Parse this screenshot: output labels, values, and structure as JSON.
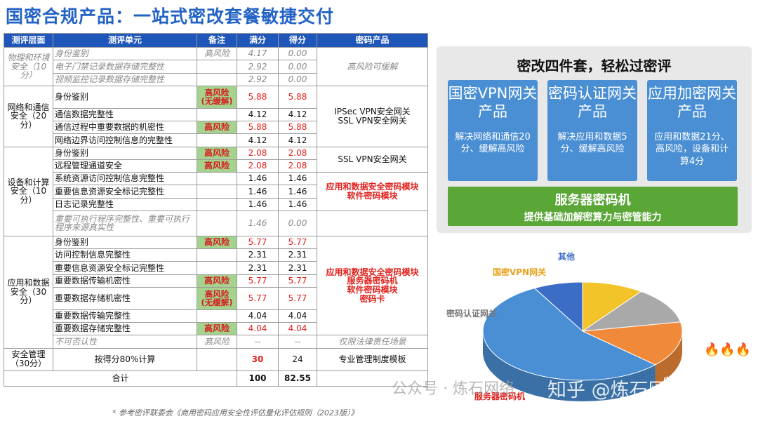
{
  "title": "国密合规产品：一站式密改套餐敏捷交付",
  "table": {
    "headers": [
      "测评层面",
      "测评单元",
      "备注",
      "满分",
      "得分",
      "密码产品"
    ],
    "r_phys_layer": "物理和环境安全（10分）",
    "r_phys": [
      {
        "unit": "身份鉴别",
        "note": "高风险",
        "full": "4.17",
        "score": "0.00"
      },
      {
        "unit": "电子门禁记录数据存储完整性",
        "note": "",
        "full": "2.92",
        "score": "0.00"
      },
      {
        "unit": "视频监控记录数据存储完整性",
        "note": "",
        "full": "2.92",
        "score": "0.00"
      }
    ],
    "r_phys_product": "高风险可缓解",
    "r_net_layer": "网络和通信安全（20分）",
    "r_net": [
      {
        "unit": "身份鉴别",
        "note": "高风险",
        "note2": "(无缓解)",
        "full": "5.88",
        "score": "5.88"
      },
      {
        "unit": "通信数据完整性",
        "note": "",
        "full": "4.12",
        "score": "4.12"
      },
      {
        "unit": "通信过程中重要数据的机密性",
        "note": "高风险",
        "full": "5.88",
        "score": "5.88"
      },
      {
        "unit": "网络边界访问控制信息的完整性",
        "note": "",
        "full": "4.12",
        "score": "4.12"
      }
    ],
    "r_net_product1": "IPSec VPN安全网关",
    "r_net_product2": "SSL VPN安全网关",
    "r_dev_layer": "设备和计算安全（10分）",
    "r_dev": [
      {
        "unit": "身份鉴别",
        "note": "高风险",
        "full": "2.08",
        "score": "2.08"
      },
      {
        "unit": "远程管理通道安全",
        "note": "高风险",
        "full": "2.08",
        "score": "2.08"
      },
      {
        "unit": "系统资源访问控制信息完整性",
        "note": "",
        "full": "1.46",
        "score": "1.46"
      },
      {
        "unit": "重要信息资源安全标记完整性",
        "note": "",
        "full": "1.46",
        "score": "1.46"
      },
      {
        "unit": "日志记录完整性",
        "note": "",
        "full": "1.46",
        "score": "1.46"
      },
      {
        "unit": "重要可执行程序完整性、重要可执行程序来源真实性",
        "note": "",
        "full": "1.46",
        "score": "0.00"
      }
    ],
    "r_dev_product1": "SSL VPN安全网关",
    "r_dev_product2": "应用和数据安全密码模块",
    "r_dev_product3": "软件密码模块",
    "r_app_layer": "应用和数据安全（30分）",
    "r_app": [
      {
        "unit": "身份鉴别",
        "note": "高风险",
        "full": "5.77",
        "score": "5.77"
      },
      {
        "unit": "访问控制信息完整性",
        "note": "",
        "full": "2.31",
        "score": "2.31"
      },
      {
        "unit": "重要信息资源安全标记完整性",
        "note": "",
        "full": "2.31",
        "score": "2.31"
      },
      {
        "unit": "重要数据传输机密性",
        "note": "高风险",
        "full": "5.77",
        "score": "5.77"
      },
      {
        "unit": "重要数据存储机密性",
        "note": "高风险",
        "note2": "(无缓解)",
        "full": "5.77",
        "score": "5.77"
      },
      {
        "unit": "重要数据传输完整性",
        "note": "",
        "full": "4.04",
        "score": "4.04"
      },
      {
        "unit": "重要数据存储完整性",
        "note": "高风险",
        "full": "4.04",
        "score": "4.04"
      },
      {
        "unit": "不可否认性",
        "note": "高风险",
        "full": "--",
        "score": "--"
      }
    ],
    "r_app_product1": "应用和数据安全密码模块",
    "r_app_product2": "服务器密码机",
    "r_app_product3": "软件密码模块",
    "r_app_product4": "密码卡",
    "r_app_product_last": "仅限法律责任场景",
    "r_mgmt_layer": "安全管理（30分）",
    "r_mgmt_unit": "按得分80%计算",
    "r_mgmt_full": "30",
    "r_mgmt_score": "24",
    "r_mgmt_product": "专业管理制度模板",
    "total_label": "合计",
    "total_full": "100",
    "total_score": "82.55"
  },
  "footnote": "* 参考密评联委会《商用密码应用安全性评估量化评估规则（2023版）》",
  "right": {
    "title": "密改四件套，轻松过密评",
    "cards": [
      {
        "head": "国密VPN网关产品",
        "desc": "解决网络和通信20分、缓解高风险"
      },
      {
        "head": "密码认证网关产品",
        "desc": "解决应用和数据5分、缓解高风险"
      },
      {
        "head": "应用加密网关产品",
        "desc": "应用和数据21分、高风险，设备和计算4分"
      }
    ],
    "server_title": "服务器密码机",
    "server_desc": "提供基础加解密算力与密管能力"
  },
  "chart_data": {
    "type": "pie",
    "categories": [
      "服务器密码机",
      "应用加密网关产品",
      "密码认证网关",
      "国密VPN网关",
      "其他"
    ],
    "values": [
      55,
      15,
      12,
      10,
      8
    ],
    "colors": [
      "#4a8fd4",
      "#f08a3a",
      "#a9a9a9",
      "#f3c42a",
      "#3c6dc6"
    ],
    "label_colors": [
      "#4a8fd4",
      "#e0211c",
      "#777777",
      "#e8a21a",
      "#3c6dc6"
    ]
  },
  "labels": {
    "other": "其他",
    "vpn": "国密VPN网关",
    "auth": "密码认证网关",
    "server": "服务器密码机",
    "app": "应用加密网关产品"
  },
  "fire": "🔥🔥🔥",
  "watermark1": "公众号 · 炼石网络",
  "watermark2": "知乎 @炼石网络"
}
